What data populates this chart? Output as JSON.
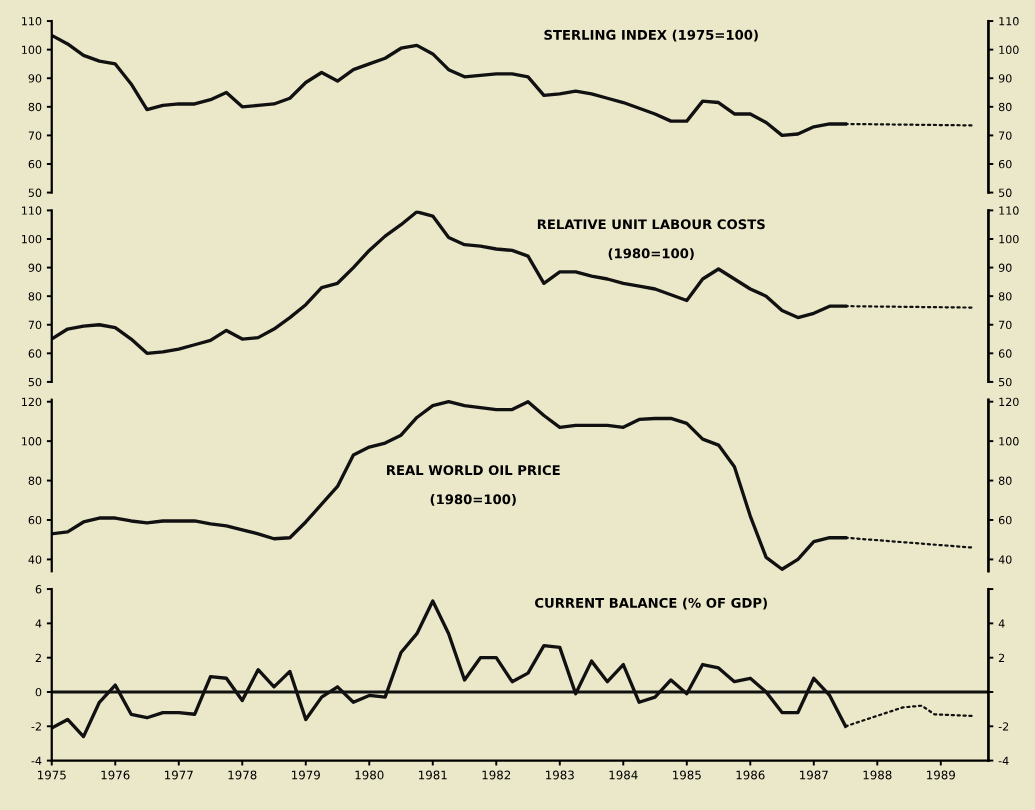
{
  "chart_data": [
    {
      "type": "line",
      "title": "STERLING INDEX (1975=100)",
      "tick_labels": "y",
      "x": [
        1975,
        1975.25,
        1975.5,
        1975.75,
        1976,
        1976.25,
        1976.5,
        1976.75,
        1977,
        1977.25,
        1977.5,
        1977.75,
        1978,
        1978.25,
        1978.5,
        1978.75,
        1979,
        1979.25,
        1979.5,
        1979.75,
        1980,
        1980.25,
        1980.5,
        1980.75,
        1981,
        1981.25,
        1981.5,
        1981.75,
        1982,
        1982.25,
        1982.5,
        1982.75,
        1983,
        1983.25,
        1983.5,
        1983.75,
        1984,
        1984.25,
        1984.5,
        1984.75,
        1985,
        1985.25,
        1985.5,
        1985.75,
        1986,
        1986.25,
        1986.5,
        1986.75,
        1987,
        1987.25,
        1987.5
      ],
      "xlim": [
        1975,
        1989.75
      ],
      "ylim": [
        50,
        110
      ],
      "yticks": [
        50,
        60,
        70,
        80,
        90,
        100,
        110
      ],
      "y2lim": [
        50,
        110
      ],
      "y2ticks": [
        50,
        60,
        70,
        80,
        90,
        100,
        110
      ],
      "series": [
        {
          "color": "#111111",
          "line_style": "solid",
          "values": [
            105,
            102,
            98,
            96,
            95,
            88,
            79,
            80.5,
            81,
            81,
            82.5,
            85,
            80,
            80.5,
            81,
            83,
            88.5,
            92,
            89,
            93,
            95,
            97,
            100.5,
            101.5,
            98.5,
            93,
            90.5,
            91,
            91.5,
            91.5,
            90.5,
            84,
            84.5,
            85.5,
            84.5,
            83,
            81.5,
            79.5,
            77.5,
            75,
            75,
            82,
            81.5,
            77.5,
            77.5,
            74.5,
            70,
            70.5,
            73,
            74,
            74
          ]
        },
        {
          "color": "#111111",
          "line_style": "dotted",
          "x": [
            1987.5,
            1989.5
          ],
          "values": [
            74,
            73.5
          ]
        }
      ]
    },
    {
      "type": "line",
      "title": "RELATIVE UNIT LABOUR COSTS",
      "subtitle": "(1980=100)",
      "tick_labels": "y",
      "x": [
        1975,
        1975.25,
        1975.5,
        1975.75,
        1976,
        1976.25,
        1976.5,
        1976.75,
        1977,
        1977.25,
        1977.5,
        1977.75,
        1978,
        1978.25,
        1978.5,
        1978.75,
        1979,
        1979.25,
        1979.5,
        1979.75,
        1980,
        1980.25,
        1980.5,
        1980.75,
        1981,
        1981.25,
        1981.5,
        1981.75,
        1982,
        1982.25,
        1982.5,
        1982.75,
        1983,
        1983.25,
        1983.5,
        1983.75,
        1984,
        1984.25,
        1984.5,
        1984.75,
        1985,
        1985.25,
        1985.5,
        1985.75,
        1986,
        1986.25,
        1986.5,
        1986.75,
        1987,
        1987.25,
        1987.5
      ],
      "xlim": [
        1975,
        1989.75
      ],
      "ylim": [
        50,
        110
      ],
      "yticks": [
        50,
        60,
        70,
        80,
        90,
        100,
        110
      ],
      "y2lim": [
        50,
        110
      ],
      "y2ticks": [
        50,
        60,
        70,
        80,
        90,
        100,
        110
      ],
      "series": [
        {
          "color": "#111111",
          "line_style": "solid",
          "values": [
            65,
            68.5,
            69.5,
            70,
            69,
            65,
            60,
            60.5,
            61.5,
            63,
            64.5,
            68,
            65,
            65.5,
            68.5,
            72.5,
            77,
            83,
            84.5,
            90,
            96,
            101,
            105,
            109.5,
            108,
            100.5,
            98,
            97.5,
            96.5,
            96,
            94,
            84.5,
            88.5,
            88.5,
            87,
            86,
            84.5,
            83.5,
            82.5,
            80.5,
            78.5,
            86,
            89.5,
            86,
            82.5,
            80,
            75,
            72.5,
            74,
            76.5,
            76.5
          ]
        },
        {
          "color": "#111111",
          "line_style": "dotted",
          "x": [
            1987.5,
            1989.5
          ],
          "values": [
            76.5,
            76
          ]
        }
      ]
    },
    {
      "type": "line",
      "title": "REAL WORLD OIL PRICE",
      "subtitle": "(1980=100)",
      "tick_labels": "y",
      "x": [
        1975,
        1975.25,
        1975.5,
        1975.75,
        1976,
        1976.25,
        1976.5,
        1976.75,
        1977,
        1977.25,
        1977.5,
        1977.75,
        1978,
        1978.25,
        1978.5,
        1978.75,
        1979,
        1979.25,
        1979.5,
        1979.75,
        1980,
        1980.25,
        1980.5,
        1980.75,
        1981,
        1981.25,
        1981.5,
        1981.75,
        1982,
        1982.25,
        1982.5,
        1982.75,
        1983,
        1983.25,
        1983.5,
        1983.75,
        1984,
        1984.25,
        1984.5,
        1984.75,
        1985,
        1985.25,
        1985.5,
        1985.75,
        1986,
        1986.25,
        1986.5,
        1986.75,
        1987,
        1987.25,
        1987.5
      ],
      "xlim": [
        1975,
        1989.75
      ],
      "ylim": [
        34,
        121
      ],
      "yticks": [
        40,
        60,
        80,
        100,
        120
      ],
      "y2lim": [
        34,
        121
      ],
      "y2ticks": [
        40,
        60,
        80,
        100,
        120
      ],
      "series": [
        {
          "color": "#111111",
          "line_style": "solid",
          "values": [
            53,
            54,
            59,
            61,
            61,
            59.5,
            58.5,
            59.5,
            59.5,
            59.5,
            58,
            57,
            55,
            53,
            50.5,
            51,
            59,
            68,
            77,
            93,
            97,
            99,
            103,
            112,
            118,
            120,
            118,
            117,
            116,
            116,
            120,
            113,
            107,
            108,
            108,
            108,
            107,
            111,
            111.5,
            111.5,
            109,
            101,
            98,
            87,
            62,
            41,
            35,
            40,
            49,
            51,
            51
          ]
        },
        {
          "color": "#111111",
          "line_style": "dotted",
          "x": [
            1987.5,
            1989.5
          ],
          "values": [
            51,
            46
          ]
        }
      ]
    },
    {
      "type": "line",
      "title": "CURRENT BALANCE (% OF GDP)",
      "x": [
        1975,
        1975.25,
        1975.5,
        1975.75,
        1976,
        1976.25,
        1976.5,
        1976.75,
        1977,
        1977.25,
        1977.5,
        1977.75,
        1978,
        1978.25,
        1978.5,
        1978.75,
        1979,
        1979.25,
        1979.5,
        1979.75,
        1980,
        1980.25,
        1980.5,
        1980.75,
        1981,
        1981.25,
        1981.5,
        1981.75,
        1982,
        1982.25,
        1982.5,
        1982.75,
        1983,
        1983.25,
        1983.5,
        1983.75,
        1984,
        1984.25,
        1984.5,
        1984.75,
        1985,
        1985.25,
        1985.5,
        1985.75,
        1986,
        1986.25,
        1986.5,
        1986.75,
        1987,
        1987.25,
        1987.5
      ],
      "xlim": [
        1975,
        1989.75
      ],
      "xticks": [
        1975,
        1976,
        1977,
        1978,
        1979,
        1980,
        1981,
        1982,
        1983,
        1984,
        1985,
        1986,
        1987,
        1988,
        1989
      ],
      "ylim": [
        -4,
        6
      ],
      "yticks": [
        -4,
        -2,
        0,
        2,
        4,
        6
      ],
      "y2lim": [
        -4,
        6
      ],
      "y2ticks": [
        -4,
        -2,
        {
          "value": 0,
          "label": null
        },
        2,
        4,
        {
          "value": 6,
          "label": null
        }
      ],
      "ref_lines": [
        {
          "axis": "y",
          "value": 0,
          "color": "#111111",
          "line_style": "solid"
        }
      ],
      "series": [
        {
          "color": "#111111",
          "line_style": "solid",
          "values": [
            -2.1,
            -1.6,
            -2.6,
            -0.6,
            0.4,
            -1.3,
            -1.5,
            -1.2,
            -1.2,
            -1.3,
            0.9,
            0.8,
            -0.5,
            1.3,
            0.3,
            1.2,
            -1.6,
            -0.3,
            0.3,
            -0.6,
            -0.2,
            -0.3,
            2.3,
            3.4,
            5.3,
            3.4,
            0.7,
            2.0,
            2.0,
            0.6,
            1.1,
            2.7,
            2.6,
            -0.1,
            1.8,
            0.6,
            1.6,
            -0.6,
            -0.3,
            0.7,
            -0.1,
            1.6,
            1.4,
            0.6,
            0.8,
            0,
            -1.2,
            -1.2,
            0.8,
            -0.2,
            -2.0
          ]
        },
        {
          "color": "#111111",
          "line_style": "dotted",
          "x": [
            1987.5,
            1988.4,
            1988.7,
            1988.9,
            1989.5
          ],
          "values": [
            -2.0,
            -0.9,
            -0.8,
            -1.3,
            -1.4
          ]
        }
      ]
    }
  ]
}
